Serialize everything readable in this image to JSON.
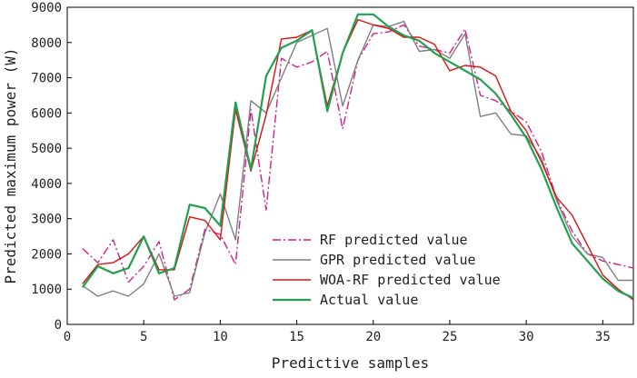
{
  "chart_data": {
    "type": "line",
    "title": "",
    "xlabel": "Predictive samples",
    "ylabel": "Predicted maximum power (W)",
    "xlim": [
      0,
      37
    ],
    "ylim": [
      0,
      9000
    ],
    "x_ticks": [
      0,
      5,
      10,
      15,
      20,
      25,
      30,
      35
    ],
    "y_ticks": [
      0,
      1000,
      2000,
      3000,
      4000,
      5000,
      6000,
      7000,
      8000,
      9000
    ],
    "x_tick_labels": [
      "0",
      "5",
      "10",
      "15",
      "20",
      "25",
      "30",
      "35"
    ],
    "y_tick_labels": [
      "0",
      "1000",
      "2000",
      "3000",
      "4000",
      "5000",
      "6000",
      "7000",
      "8000",
      "9000"
    ],
    "grid": false,
    "legend_position": "bottom-right",
    "x": [
      1,
      2,
      3,
      4,
      5,
      6,
      7,
      8,
      9,
      10,
      11,
      12,
      13,
      14,
      15,
      16,
      17,
      18,
      19,
      20,
      21,
      22,
      23,
      24,
      25,
      26,
      27,
      28,
      29,
      30,
      31,
      32,
      33,
      34,
      35,
      36,
      37
    ],
    "series": [
      {
        "name": "RF predicted value",
        "color": "#d0208a",
        "style": "dashdot",
        "values": [
          2150,
          1750,
          2400,
          1200,
          1650,
          2350,
          700,
          1000,
          2700,
          2550,
          1700,
          6100,
          3250,
          7550,
          7300,
          7450,
          7750,
          5550,
          7500,
          8250,
          8300,
          8500,
          7900,
          7800,
          7700,
          8380,
          6500,
          6350,
          6050,
          5750,
          4900,
          3550,
          2650,
          2000,
          1800,
          1700,
          1600
        ]
      },
      {
        "name": "GPR predicted value",
        "color": "#808080",
        "style": "solid",
        "values": [
          1100,
          800,
          950,
          800,
          1150,
          2000,
          800,
          900,
          2600,
          3700,
          2400,
          6350,
          6000,
          7000,
          8000,
          8200,
          8400,
          6200,
          7500,
          8500,
          8450,
          8600,
          7750,
          7800,
          7550,
          8250,
          5900,
          6000,
          5400,
          5350,
          4700,
          3500,
          2500,
          2000,
          1900,
          1250,
          1250
        ]
      },
      {
        "name": "WOA-RF predicted value",
        "color": "#e01010",
        "style": "solid",
        "values": [
          1150,
          1700,
          1750,
          2000,
          2500,
          1550,
          1550,
          3050,
          2950,
          2400,
          6100,
          4350,
          5950,
          8100,
          8150,
          8350,
          6200,
          7700,
          8650,
          8500,
          8400,
          8150,
          8150,
          7950,
          7200,
          7350,
          7300,
          7050,
          6050,
          5500,
          4600,
          3600,
          3100,
          2250,
          1400,
          1000,
          700
        ]
      },
      {
        "name": "Actual value",
        "color": "#20a050",
        "style": "solid",
        "values": [
          1050,
          1650,
          1450,
          1600,
          2500,
          1450,
          1600,
          3400,
          3300,
          2800,
          6300,
          4400,
          7050,
          7850,
          8050,
          8350,
          6050,
          7700,
          8800,
          8800,
          8450,
          8200,
          8050,
          7700,
          7450,
          7200,
          6950,
          6550,
          5950,
          5300,
          4400,
          3300,
          2300,
          1800,
          1300,
          950,
          750
        ]
      }
    ]
  }
}
